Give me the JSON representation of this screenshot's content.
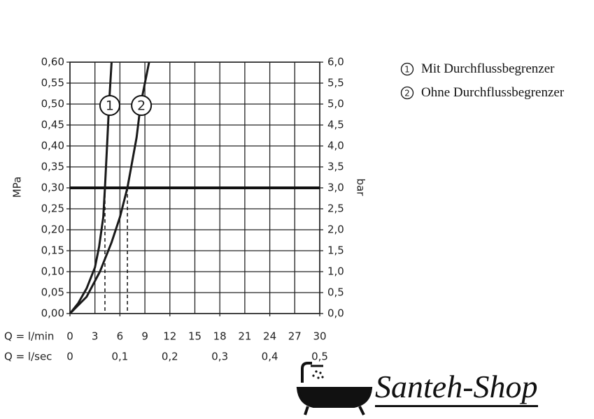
{
  "chart_data": {
    "type": "line",
    "x_label": "Q = l/min",
    "x2_label": "Q = l/sec",
    "y_label": "MPa",
    "y2_label": "bar",
    "xlim": [
      0,
      30
    ],
    "xticks": [
      0,
      3,
      6,
      9,
      12,
      15,
      18,
      21,
      24,
      27,
      30
    ],
    "x2lim": [
      0,
      0.5
    ],
    "x2ticks": [
      0,
      {
        "value": 0.1,
        "label": "0,1"
      },
      {
        "value": 0.2,
        "label": "0,2"
      },
      {
        "value": 0.3,
        "label": "0,3"
      },
      {
        "value": 0.4,
        "label": "0,4"
      },
      {
        "value": 0.5,
        "label": "0,5"
      }
    ],
    "ylim": [
      0,
      0.6
    ],
    "yticks": [
      {
        "value": 0,
        "label": "0,00"
      },
      {
        "value": 0.05,
        "label": "0,05"
      },
      {
        "value": 0.1,
        "label": "0,10"
      },
      {
        "value": 0.15,
        "label": "0,15"
      },
      {
        "value": 0.2,
        "label": "0,20"
      },
      {
        "value": 0.25,
        "label": "0,25"
      },
      {
        "value": 0.3,
        "label": "0,30"
      },
      {
        "value": 0.35,
        "label": "0,35"
      },
      {
        "value": 0.4,
        "label": "0,40"
      },
      {
        "value": 0.45,
        "label": "0,45"
      },
      {
        "value": 0.5,
        "label": "0,50"
      },
      {
        "value": 0.55,
        "label": "0,55"
      },
      {
        "value": 0.6,
        "label": "0,60"
      }
    ],
    "y2lim": [
      0,
      6
    ],
    "y2ticks": [
      {
        "value": 0,
        "label": "0,0"
      },
      {
        "value": 0.5,
        "label": "0,5"
      },
      {
        "value": 1,
        "label": "1,0"
      },
      {
        "value": 1.5,
        "label": "1,5"
      },
      {
        "value": 2,
        "label": "2,0"
      },
      {
        "value": 2.5,
        "label": "2,5"
      },
      {
        "value": 3,
        "label": "3,0"
      },
      {
        "value": 3.5,
        "label": "3,5"
      },
      {
        "value": 4,
        "label": "4,0"
      },
      {
        "value": 4.5,
        "label": "4,5"
      },
      {
        "value": 5,
        "label": "5,0"
      },
      {
        "value": 5.5,
        "label": "5,5"
      },
      {
        "value": 6,
        "label": "6,0"
      }
    ],
    "grid": true,
    "reference_y": 0.3,
    "reference_x": [
      4.2,
      6.9
    ],
    "series": [
      {
        "name": "Mit Durchflussbegrenzer",
        "marker": "1",
        "color": "#1a1a1a",
        "x": [
          0,
          1,
          2,
          3,
          3.5,
          4,
          4.2,
          4.5,
          4.7,
          5.0
        ],
        "values": [
          0,
          0.025,
          0.06,
          0.11,
          0.16,
          0.23,
          0.3,
          0.42,
          0.5,
          0.6
        ]
      },
      {
        "name": "Ohne Durchflussbegrenzer",
        "marker": "2",
        "color": "#1a1a1a",
        "x": [
          0,
          2,
          3.6,
          5,
          6,
          6.9,
          8,
          8.5,
          9.5
        ],
        "values": [
          0,
          0.04,
          0.1,
          0.17,
          0.23,
          0.3,
          0.42,
          0.5,
          0.6
        ]
      }
    ]
  },
  "watermark": "Santeh-Shop"
}
